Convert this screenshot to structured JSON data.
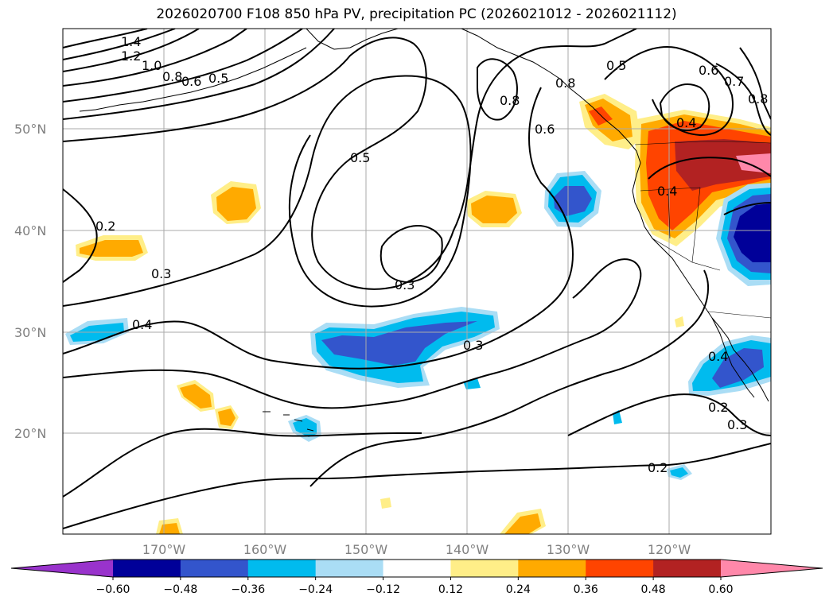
{
  "title": "2026020700 F108 850 hPa PV, precipitation PC (2026021012 - 2026021112)",
  "axes": {
    "latitude_labels": [
      "50°N",
      "40°N",
      "30°N",
      "20°N"
    ],
    "longitude_labels": [
      "170°W",
      "160°W",
      "150°W",
      "140°W",
      "130°W",
      "120°W"
    ]
  },
  "colorbar": {
    "labels": [
      "−0.60",
      "−0.48",
      "−0.36",
      "−0.24",
      "−0.12",
      "0.12",
      "0.24",
      "0.36",
      "0.48",
      "0.60"
    ],
    "colors": [
      "#9933cc",
      "#000099",
      "#3355cc",
      "#00bbee",
      "#aaddf5",
      "#ffffff",
      "#ffee88",
      "#ffaa00",
      "#ff4400",
      "#b22222",
      "#ff88aa"
    ]
  },
  "contour_labels": [
    "1.4",
    "1.2",
    "1.0",
    "0.8",
    "0.6",
    "0.5",
    "0.8",
    "0.6",
    "0.8",
    "0.5",
    "0.6",
    "0.7",
    "0.8",
    "0.4",
    "0.5",
    "0.4",
    "0.2",
    "0.3",
    "0.3",
    "0.4",
    "0.3",
    "0.4",
    "0.2",
    "0.3",
    "0.2"
  ]
}
